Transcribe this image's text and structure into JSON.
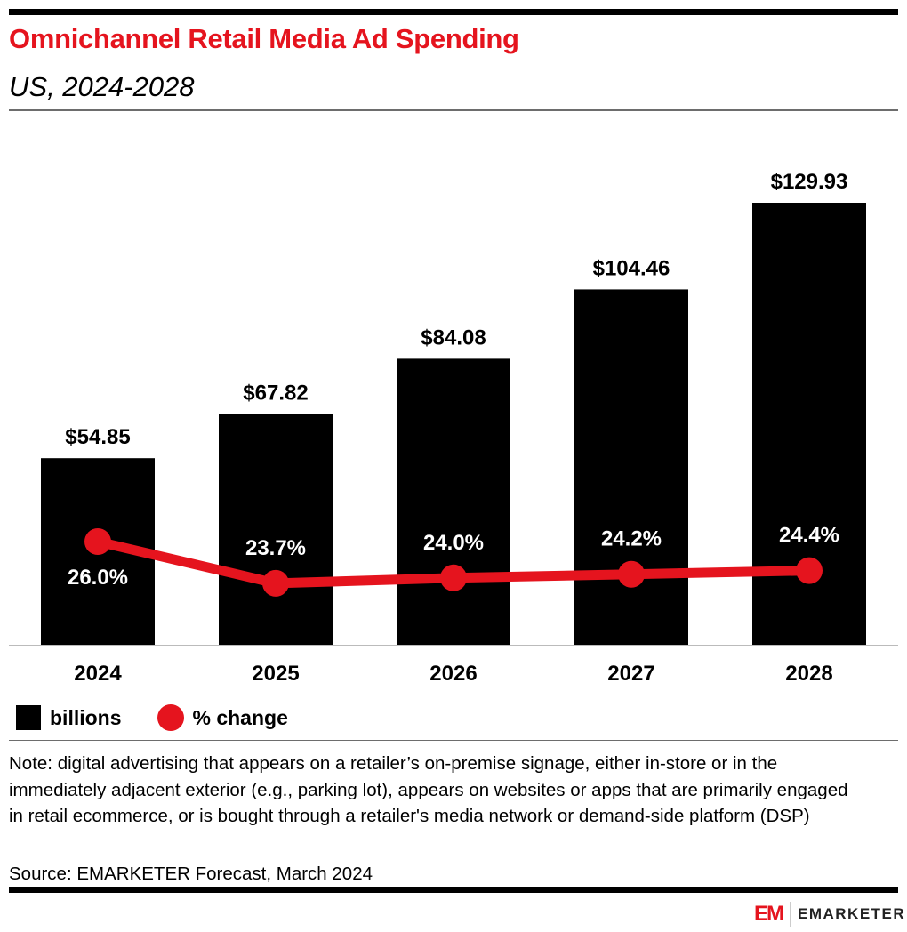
{
  "header": {
    "title": "Omnichannel Retail Media Ad Spending",
    "subtitle": "US, 2024-2028"
  },
  "chart_data": {
    "type": "bar+line",
    "title": "Omnichannel Retail Media Ad Spending",
    "subtitle": "US, 2024-2028",
    "categories": [
      "2024",
      "2025",
      "2026",
      "2027",
      "2028"
    ],
    "series": [
      {
        "name": "billions",
        "type": "bar",
        "color": "#000000",
        "values": [
          54.85,
          67.82,
          84.08,
          104.46,
          129.93
        ],
        "labels": [
          "$54.85",
          "$67.82",
          "$84.08",
          "$104.46",
          "$129.93"
        ]
      },
      {
        "name": "% change",
        "type": "line",
        "color": "#e5141e",
        "values": [
          26.0,
          23.7,
          24.0,
          24.2,
          24.4
        ],
        "labels": [
          "26.0%",
          "23.7%",
          "24.0%",
          "24.2%",
          "24.4%"
        ]
      }
    ],
    "grid": false,
    "legend": "bottom-left"
  },
  "legend": {
    "bars": "billions",
    "line": "% change"
  },
  "footer": {
    "note": "Note: digital advertising that appears on a retailer’s on-premise signage, either in-store or in the immediately adjacent exterior (e.g., parking lot), appears on websites or apps that are primarily engaged in retail ecommerce, or is bought through a retailer's media network or demand-side platform (DSP)",
    "source": "Source: EMARKETER Forecast, March 2024",
    "logo_mark": "EM",
    "logo_text": "EMARKETER"
  }
}
